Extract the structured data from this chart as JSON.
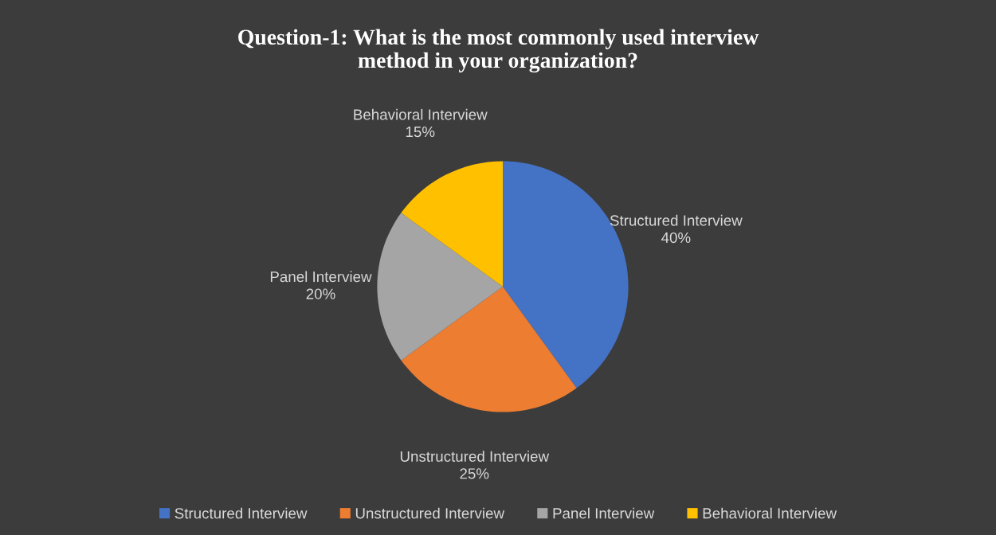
{
  "chart_data": {
    "type": "pie",
    "title": "Question-1: What is the most commonly used interview\nmethod in your organization?",
    "categories": [
      "Structured Interview",
      "Unstructured Interview",
      "Panel Interview",
      "Behavioral Interview"
    ],
    "values": [
      40,
      25,
      20,
      15
    ],
    "colors": [
      "#4472c4",
      "#ed7d31",
      "#a5a5a5",
      "#ffc000"
    ],
    "value_labels": [
      "40%",
      "25%",
      "20%",
      "15%"
    ],
    "legend": "bottom"
  }
}
